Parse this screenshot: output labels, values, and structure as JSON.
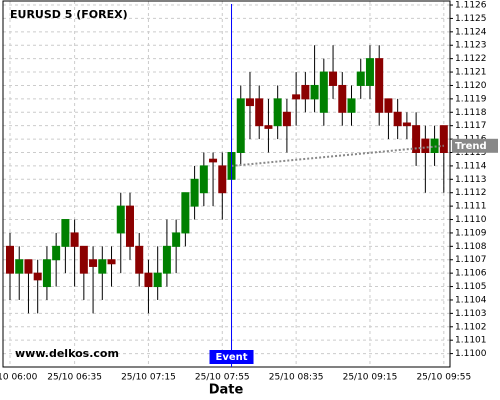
{
  "chart_data": {
    "type": "candlestick",
    "title": "EURUSD 5 (FOREX)",
    "watermark": "www.delkos.com",
    "x_label": "Date",
    "categories": [
      "25/10 06:00",
      null,
      null,
      null,
      null,
      null,
      null,
      "25/10 06:35",
      null,
      null,
      null,
      null,
      null,
      null,
      null,
      "25/10 07:15",
      null,
      null,
      null,
      null,
      null,
      null,
      null,
      "25/10 07:55",
      null,
      null,
      null,
      null,
      null,
      null,
      null,
      "25/10 08:35",
      null,
      null,
      null,
      null,
      null,
      null,
      null,
      "25/10 09:15",
      null,
      null,
      null,
      null,
      null,
      null,
      null,
      "25/10 09:55"
    ],
    "open": [
      1.1108,
      1.1106,
      1.1107,
      1.1106,
      1.1105,
      1.1107,
      1.1108,
      1.1109,
      1.1108,
      1.1107,
      1.1106,
      1.1107,
      1.1109,
      1.1111,
      1.1108,
      1.1106,
      1.1105,
      1.1106,
      1.1108,
      1.1109,
      1.1111,
      1.1112,
      1.11145,
      1.1114,
      1.1113,
      1.1115,
      1.1119,
      1.1119,
      1.1117,
      1.1117,
      1.1118,
      1.11193,
      1.112,
      1.1119,
      1.1118,
      1.1121,
      1.112,
      1.1118,
      1.112,
      1.112,
      1.1122,
      1.1119,
      1.1118,
      1.11172,
      1.1117,
      1.1116,
      1.1115,
      1.1117
    ],
    "high": [
      1.1109,
      1.1108,
      1.1107,
      1.1107,
      1.1108,
      1.1109,
      1.111,
      1.111,
      1.1108,
      1.1108,
      1.1108,
      1.1108,
      1.1112,
      1.1112,
      1.1109,
      1.1107,
      1.1108,
      1.111,
      1.111,
      1.1112,
      1.1114,
      1.1115,
      1.1115,
      1.1115,
      1.1116,
      1.112,
      1.1121,
      1.112,
      1.1119,
      1.112,
      1.1119,
      1.1121,
      1.1121,
      1.1123,
      1.1122,
      1.1123,
      1.1121,
      1.112,
      1.1122,
      1.1123,
      1.1123,
      1.1119,
      1.1119,
      1.1118,
      1.1118,
      1.1117,
      1.1117,
      1.1117
    ],
    "low": [
      1.1104,
      1.1104,
      1.1103,
      1.1103,
      1.1104,
      1.1105,
      1.1106,
      1.1105,
      1.1104,
      1.1103,
      1.1104,
      1.1105,
      1.1106,
      1.1107,
      1.1105,
      1.1103,
      1.1104,
      1.1105,
      1.1106,
      1.1108,
      1.111,
      1.1111,
      1.1111,
      1.111,
      1.1111,
      1.1114,
      1.1116,
      1.1116,
      1.1115,
      1.1116,
      1.1115,
      1.1117,
      1.1118,
      1.1118,
      1.1117,
      1.1119,
      1.1117,
      1.1117,
      1.1119,
      1.1119,
      1.1117,
      1.1116,
      1.1116,
      1.1116,
      1.1114,
      1.1112,
      1.1114,
      1.1112
    ],
    "close": [
      1.1106,
      1.1107,
      1.1106,
      1.11055,
      1.1107,
      1.1108,
      1.111,
      1.1108,
      1.1106,
      1.11065,
      1.1107,
      1.11067,
      1.1111,
      1.1108,
      1.1106,
      1.1105,
      1.1106,
      1.1108,
      1.1109,
      1.1112,
      1.1113,
      1.1114,
      1.11143,
      1.1112,
      1.1115,
      1.1119,
      1.11185,
      1.1117,
      1.11168,
      1.1119,
      1.1117,
      1.1119,
      1.1119,
      1.112,
      1.1121,
      1.112,
      1.1118,
      1.1119,
      1.1121,
      1.1122,
      1.1118,
      1.1118,
      1.1117,
      1.1117,
      1.1115,
      1.1115,
      1.1116,
      1.1115
    ],
    "up_color": "#008000",
    "down_color": "#8b0000",
    "ylim": [
      1.1099,
      1.11263
    ],
    "yticks": [
      {
        "value": 1.11,
        "label": "1.1100"
      },
      {
        "value": 1.1101,
        "label": "1.1101"
      },
      {
        "value": 1.1102,
        "label": "1.1102"
      },
      {
        "value": 1.1103,
        "label": "1.1103"
      },
      {
        "value": 1.1104,
        "label": "1.1104"
      },
      {
        "value": 1.1105,
        "label": "1.1105"
      },
      {
        "value": 1.1106,
        "label": "1.1106"
      },
      {
        "value": 1.1107,
        "label": "1.1107"
      },
      {
        "value": 1.1108,
        "label": "1.1108"
      },
      {
        "value": 1.1109,
        "label": "1.1109"
      },
      {
        "value": 1.111,
        "label": "1.1110"
      },
      {
        "value": 1.1111,
        "label": "1.1111"
      },
      {
        "value": 1.1112,
        "label": "1.1112"
      },
      {
        "value": 1.1113,
        "label": "1.1113"
      },
      {
        "value": 1.1114,
        "label": "1.1114"
      },
      {
        "value": 1.1115,
        "label": "1.1115"
      },
      {
        "value": 1.1116,
        "label": "1.1116"
      },
      {
        "value": 1.1117,
        "label": "1.1117"
      },
      {
        "value": 1.1118,
        "label": "1.1118"
      },
      {
        "value": 1.1119,
        "label": "1.1119"
      },
      {
        "value": 1.112,
        "label": "1.1120"
      },
      {
        "value": 1.1121,
        "label": "1.1121"
      },
      {
        "value": 1.1122,
        "label": "1.1122"
      },
      {
        "value": 1.1123,
        "label": "1.1123"
      },
      {
        "value": 1.1124,
        "label": "1.1124"
      },
      {
        "value": 1.1125,
        "label": "1.1125"
      },
      {
        "value": 1.1126,
        "label": "1.1126"
      }
    ],
    "grid": true,
    "event": {
      "label": "Event",
      "index": 24,
      "color": "#0000ff"
    },
    "trend": {
      "label": "Trend",
      "indices": [
        24,
        47
      ],
      "values": [
        1.1114,
        1.11155
      ],
      "color": "#888888"
    }
  }
}
